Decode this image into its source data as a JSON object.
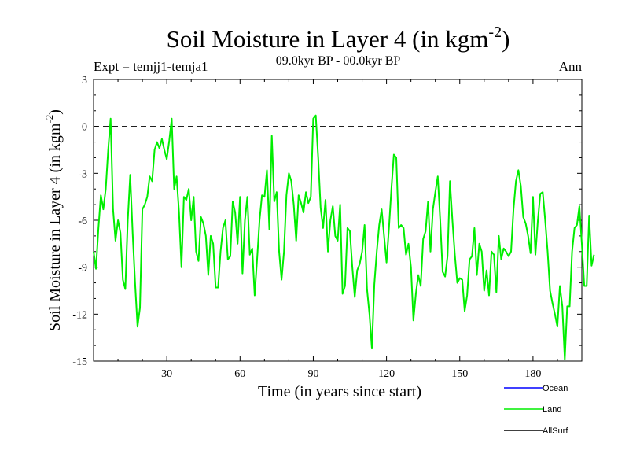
{
  "chart_data": {
    "type": "line",
    "title": "Soil Moisture in Layer 4 (in kgm",
    "title_sup": "-2",
    "title_close": ")",
    "subtitle": "09.0kyr BP - 00.0kyr BP",
    "expt_label": "Expt = temjj1-temja1",
    "period_label": "Ann",
    "xlabel": "Time (in years since start)",
    "ylabel": "Soil Moisture in Layer 4 (in kgm",
    "ylabel_sup": "-2",
    "ylabel_close": ")",
    "xlim": [
      0,
      200
    ],
    "ylim": [
      -15,
      3
    ],
    "x_ticks": [
      30,
      60,
      90,
      120,
      150,
      180
    ],
    "y_ticks": [
      3,
      0,
      -3,
      -6,
      -9,
      -12,
      -15
    ],
    "reference_line": 0,
    "colors": {
      "ocean": "#0000ff",
      "land": "#00ee00",
      "allsurf": "#000000"
    },
    "legend": [
      "Ocean",
      "Land",
      "AllSurf"
    ],
    "series": [
      {
        "name": "Ocean",
        "values": []
      },
      {
        "name": "Land",
        "x_start": 0,
        "x_step": 1,
        "values": [
          -8.0,
          -9.1,
          -6.5,
          -4.4,
          -5.3,
          -4.0,
          -1.5,
          0.5,
          -5.3,
          -7.3,
          -6.0,
          -6.8,
          -9.8,
          -10.4,
          -6.0,
          -3.1,
          -6.8,
          -10.0,
          -12.8,
          -11.6,
          -5.3,
          -5.0,
          -4.5,
          -3.2,
          -3.5,
          -1.5,
          -1.0,
          -1.4,
          -0.8,
          -1.5,
          -2.1,
          -0.9,
          0.5,
          -4.0,
          -3.2,
          -5.5,
          -9.0,
          -4.5,
          -4.7,
          -4.0,
          -6.0,
          -4.5,
          -8.0,
          -8.6,
          -5.8,
          -6.2,
          -7.0,
          -9.5,
          -7.0,
          -7.5,
          -10.3,
          -10.3,
          -8.0,
          -6.5,
          -6.0,
          -8.5,
          -8.3,
          -4.8,
          -5.5,
          -7.5,
          -4.5,
          -9.4,
          -6.0,
          -4.5,
          -8.2,
          -7.8,
          -10.8,
          -8.5,
          -6.0,
          -4.4,
          -4.5,
          -2.8,
          -6.6,
          -0.6,
          -4.8,
          -4.2,
          -8.0,
          -9.8,
          -8.0,
          -4.4,
          -3.0,
          -3.5,
          -5.0,
          -7.3,
          -4.4,
          -4.9,
          -5.5,
          -4.2,
          -4.9,
          -4.5,
          0.5,
          0.7,
          -2.0,
          -5.2,
          -6.5,
          -4.7,
          -8.0,
          -6.0,
          -5.1,
          -7.0,
          -7.3,
          -5.0,
          -10.7,
          -10.2,
          -6.5,
          -6.7,
          -9.0,
          -10.9,
          -9.2,
          -8.8,
          -8.0,
          -6.3,
          -10.4,
          -12.0,
          -14.2,
          -10.1,
          -8.0,
          -6.3,
          -5.3,
          -7.0,
          -8.7,
          -6.5,
          -4.0,
          -1.8,
          -2.0,
          -6.5,
          -6.3,
          -6.5,
          -8.2,
          -7.5,
          -9.0,
          -12.4,
          -10.7,
          -9.5,
          -10.2,
          -7.2,
          -6.7,
          -4.8,
          -8.0,
          -5.3,
          -4.2,
          -3.2,
          -6.0,
          -9.3,
          -9.6,
          -8.3,
          -3.5,
          -6.0,
          -8.2,
          -10.0,
          -9.7,
          -9.8,
          -11.8,
          -10.8,
          -8.5,
          -8.3,
          -6.5,
          -9.5,
          -7.5,
          -8.0,
          -10.5,
          -9.2,
          -10.8,
          -8.0,
          -8.2,
          -10.6,
          -7.0,
          -8.5,
          -7.8,
          -8.0,
          -8.3,
          -8.0,
          -5.3,
          -3.5,
          -2.8,
          -3.8,
          -5.8,
          -6.2,
          -7.0,
          -8.1,
          -4.5,
          -8.2,
          -6.0,
          -4.3,
          -4.2,
          -6.0,
          -8.0,
          -10.5,
          -11.3,
          -12.0,
          -12.8,
          -10.2,
          -11.5,
          -14.9,
          -11.5,
          -11.5,
          -8.0,
          -6.5,
          -6.3,
          -5.1,
          -7.5,
          -10.2,
          -10.2,
          -5.7,
          -8.9,
          -8.2
        ]
      },
      {
        "name": "AllSurf",
        "values": []
      }
    ]
  }
}
